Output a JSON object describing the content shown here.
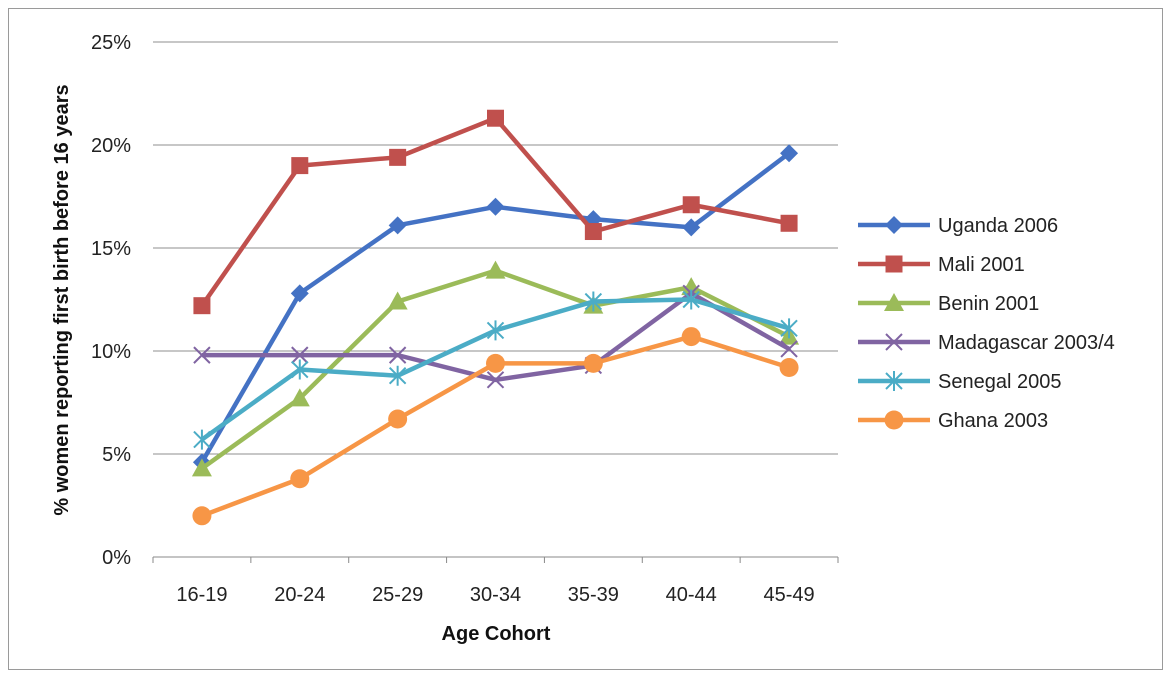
{
  "chart_data": {
    "type": "line",
    "title": "",
    "xlabel": "Age Cohort",
    "ylabel": "% women reporting first birth before 16 years",
    "categories": [
      "16-19",
      "20-24",
      "25-29",
      "30-34",
      "35-39",
      "40-44",
      "45-49"
    ],
    "ylim": [
      0,
      25
    ],
    "yticks": [
      "0%",
      "5%",
      "10%",
      "15%",
      "20%",
      "25%"
    ],
    "ytick_values": [
      0,
      5,
      10,
      15,
      20,
      25
    ],
    "grid": "horizontal",
    "legend_position": "right",
    "series": [
      {
        "name": "Uganda 2006",
        "color": "#4472C4",
        "marker": "diamond",
        "values": [
          4.6,
          12.8,
          16.1,
          17.0,
          16.4,
          16.0,
          19.6
        ]
      },
      {
        "name": "Mali 2001",
        "color": "#C0504D",
        "marker": "square",
        "values": [
          12.2,
          19.0,
          19.4,
          21.3,
          15.8,
          17.1,
          16.2
        ]
      },
      {
        "name": "Benin 2001",
        "color": "#9BBB59",
        "marker": "triangle",
        "values": [
          4.3,
          7.7,
          12.4,
          13.9,
          12.2,
          13.1,
          10.7
        ]
      },
      {
        "name": "Madagascar 2003/4",
        "color": "#8064A2",
        "marker": "x",
        "values": [
          9.8,
          9.8,
          9.8,
          8.6,
          9.3,
          12.8,
          10.1
        ]
      },
      {
        "name": "Senegal 2005",
        "color": "#4BACC6",
        "marker": "star",
        "values": [
          5.7,
          9.1,
          8.8,
          11.0,
          12.4,
          12.5,
          11.1
        ]
      },
      {
        "name": "Ghana 2003",
        "color": "#F79646",
        "marker": "circle",
        "values": [
          2.0,
          3.8,
          6.7,
          9.4,
          9.4,
          10.7,
          9.2
        ]
      }
    ]
  }
}
